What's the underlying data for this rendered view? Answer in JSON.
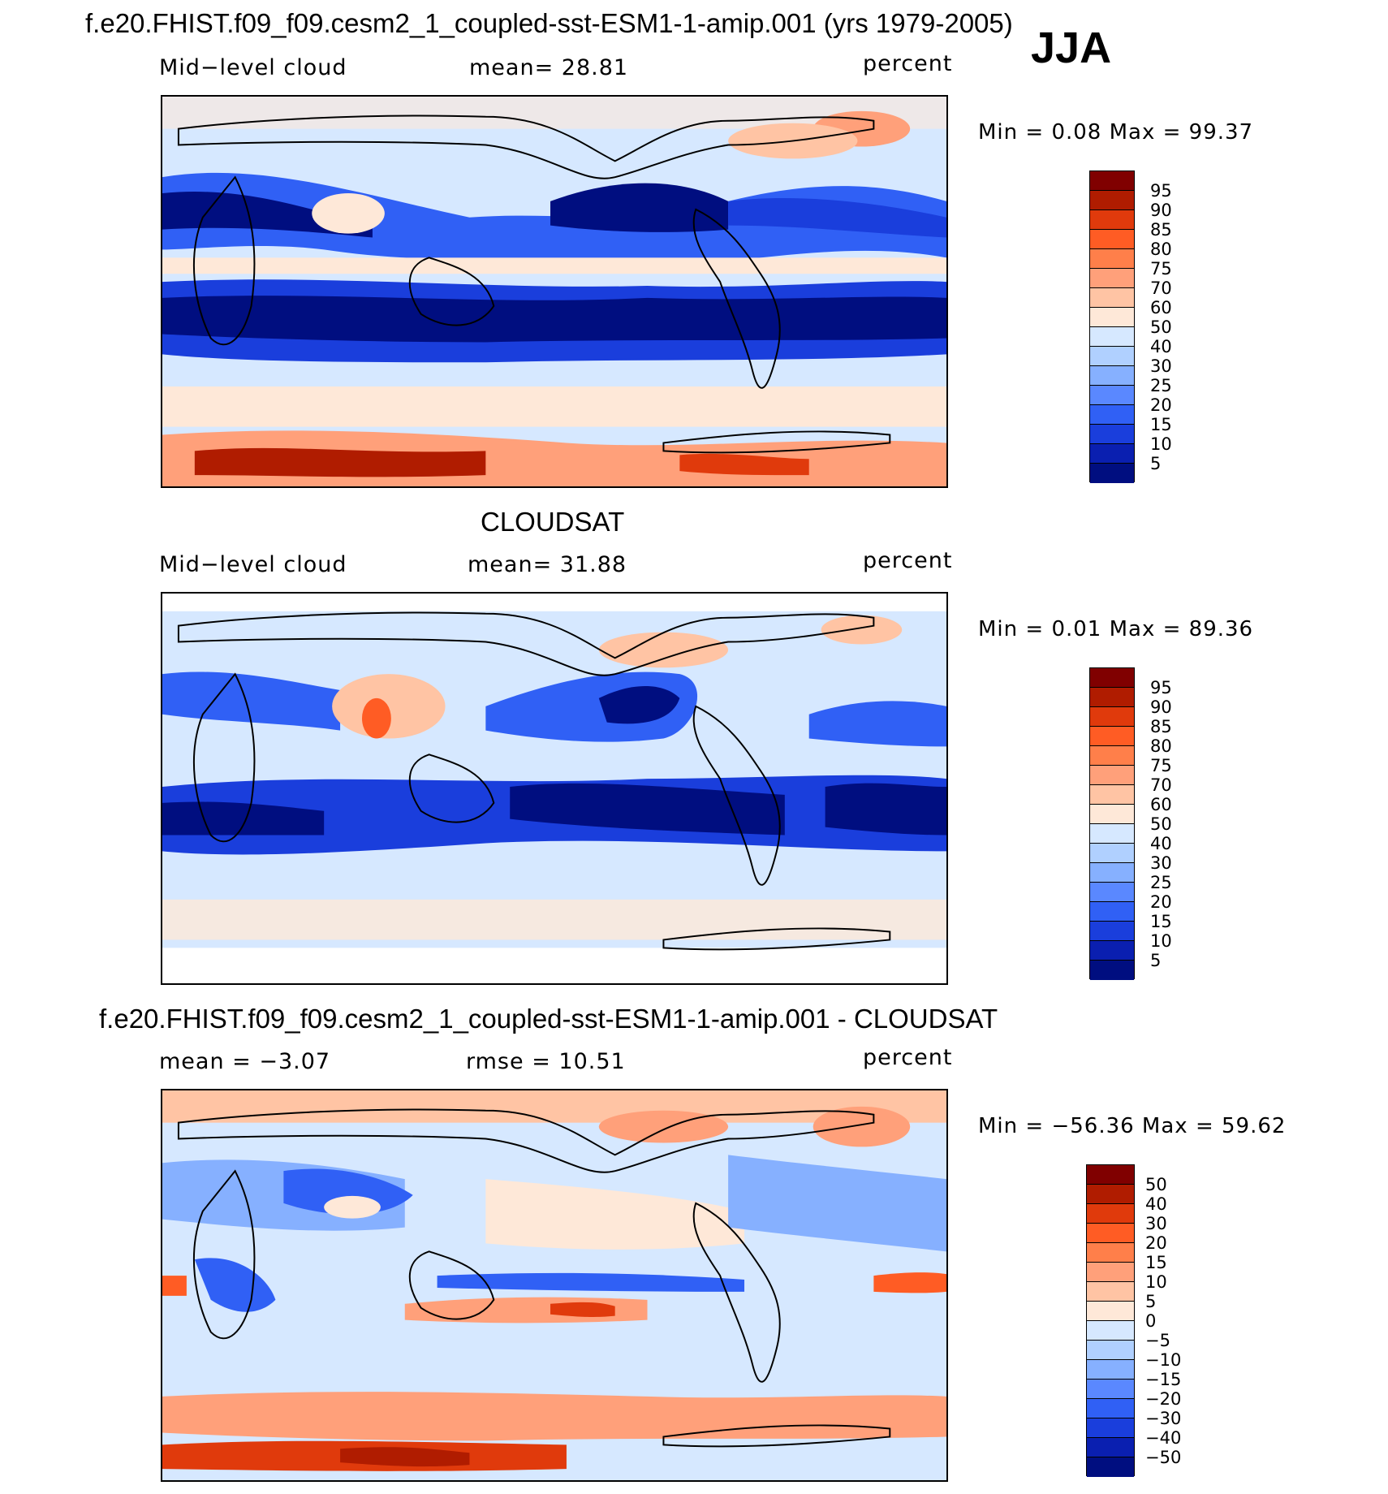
{
  "season": "JJA",
  "panels": [
    {
      "title": "f.e20.FHIST.f09_f09.cesm2_1_coupled-sst-ESM1-1-amip.001 (yrs 1979-2005)",
      "left_label": "Mid−level cloud",
      "center_label": "mean=   28.81",
      "units": "percent",
      "minmax": "Min  =     0.08  Max  =    99.37",
      "legend_labels": [
        "95",
        "90",
        "85",
        "80",
        "75",
        "70",
        "60",
        "50",
        "40",
        "30",
        "25",
        "20",
        "15",
        "10",
        "5"
      ],
      "legend_colors": [
        "#800000",
        "#b01c00",
        "#e03a0c",
        "#ff5c24",
        "#ff7f4a",
        "#ffa07a",
        "#ffc4a4",
        "#fee8d8",
        "#d6e8ff",
        "#b0d0ff",
        "#86b0ff",
        "#5a88ff",
        "#3060f5",
        "#1a3edc",
        "#0a1fb0",
        "#000e80"
      ]
    },
    {
      "title": "CLOUDSAT",
      "left_label": "Mid−level cloud",
      "center_label": "mean=   31.88",
      "units": "percent",
      "minmax": "Min  =     0.01  Max  =    89.36",
      "legend_labels": [
        "95",
        "90",
        "85",
        "80",
        "75",
        "70",
        "60",
        "50",
        "40",
        "30",
        "25",
        "20",
        "15",
        "10",
        "5"
      ],
      "legend_colors": [
        "#800000",
        "#b01c00",
        "#e03a0c",
        "#ff5c24",
        "#ff7f4a",
        "#ffa07a",
        "#ffc4a4",
        "#fee8d8",
        "#d6e8ff",
        "#b0d0ff",
        "#86b0ff",
        "#5a88ff",
        "#3060f5",
        "#1a3edc",
        "#0a1fb0",
        "#000e80"
      ]
    },
    {
      "title": "f.e20.FHIST.f09_f09.cesm2_1_coupled-sst-ESM1-1-amip.001 - CLOUDSAT",
      "left_label": "mean  =    −3.07",
      "center_label": "rmse  =    10.51",
      "units": "percent",
      "minmax": "Min  =  −56.36  Max  =    59.62",
      "legend_labels": [
        "50",
        "40",
        "30",
        "20",
        "15",
        "10",
        "5",
        "0",
        "−5",
        "−10",
        "−15",
        "−20",
        "−30",
        "−40",
        "−50"
      ],
      "legend_colors": [
        "#800000",
        "#b01c00",
        "#e03a0c",
        "#ff5c24",
        "#ff7f4a",
        "#ffa07a",
        "#ffc4a4",
        "#fee8d8",
        "#d6e8ff",
        "#b0d0ff",
        "#86b0ff",
        "#5a88ff",
        "#3060f5",
        "#1a3edc",
        "#0a1fb0",
        "#000e80"
      ]
    }
  ]
}
